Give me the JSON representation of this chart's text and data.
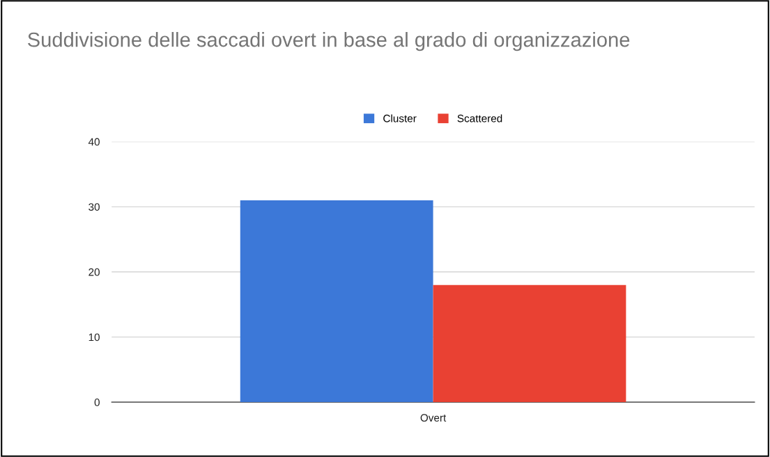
{
  "chart_data": {
    "type": "bar",
    "title": "Suddivisione delle saccadi overt in base al grado di organizzazione",
    "categories": [
      "Overt"
    ],
    "series": [
      {
        "name": "Cluster",
        "color": "#3c78d8",
        "values": [
          31
        ]
      },
      {
        "name": "Scattered",
        "color": "#e94133",
        "values": [
          18
        ]
      }
    ],
    "ylim": [
      0,
      40
    ],
    "yticks": [
      0,
      10,
      20,
      30,
      40
    ],
    "grid": "y",
    "legend": "top"
  }
}
